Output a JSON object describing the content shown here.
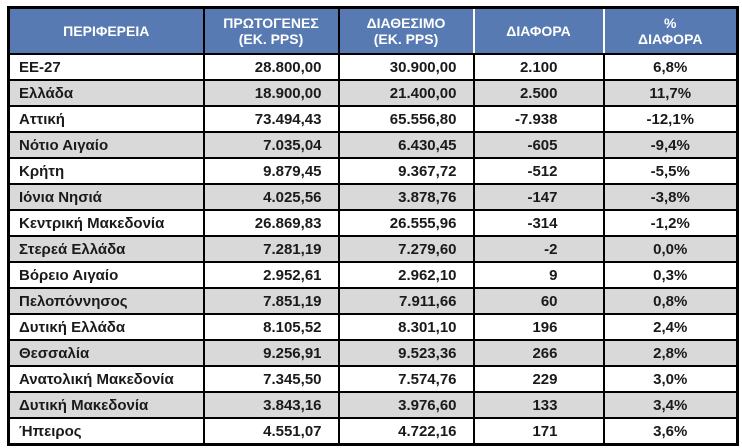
{
  "colors": {
    "header_bg": "#587AB2",
    "header_text": "#FFFFFF",
    "row_bg": "#FFFFFF",
    "row_alt_bg": "#D9D9D9",
    "border": "#000000",
    "body_text": "#1A1A1A"
  },
  "header": {
    "cols": [
      {
        "line1": "ΠΕΡΙΦΕΡΕΙΑ",
        "line2": ""
      },
      {
        "line1": "ΠΡΩΤΟΓΕΝΕΣ",
        "line2": "(ΕΚ. PPS)"
      },
      {
        "line1": "ΔΙΑΘΕΣΙΜΟ",
        "line2": "(ΕΚ. PPS)"
      },
      {
        "line1": "ΔΙΑΦΟΡΑ",
        "line2": ""
      },
      {
        "line1": "%",
        "line2": "ΔΙΑΦΟΡΑ"
      }
    ]
  },
  "chart_data": {
    "type": "table",
    "columns": [
      "ΠΕΡΙΦΕΡΕΙΑ",
      "ΠΡΩΤΟΓΕΝΕΣ (ΕΚ. PPS)",
      "ΔΙΑΘΕΣΙΜΟ (ΕΚ. PPS)",
      "ΔΙΑΦΟΡΑ",
      "% ΔΙΑΦΟΡΑ"
    ],
    "rows": [
      [
        "EE-27",
        "28.800,00",
        "30.900,00",
        "2.100",
        "6,8%"
      ],
      [
        "Ελλάδα",
        "18.900,00",
        "21.400,00",
        "2.500",
        "11,7%"
      ],
      [
        "Αττική",
        "73.494,43",
        "65.556,80",
        "-7.938",
        "-12,1%"
      ],
      [
        "Νότιο Αιγαίο",
        "7.035,04",
        "6.430,45",
        "-605",
        "-9,4%"
      ],
      [
        "Κρήτη",
        "9.879,45",
        "9.367,72",
        "-512",
        "-5,5%"
      ],
      [
        "Ιόνια Νησιά",
        "4.025,56",
        "3.878,76",
        "-147",
        "-3,8%"
      ],
      [
        "Κεντρική Μακεδονία",
        "26.869,83",
        "26.555,96",
        "-314",
        "-1,2%"
      ],
      [
        "Στερεά Ελλάδα",
        "7.281,19",
        "7.279,60",
        "-2",
        "0,0%"
      ],
      [
        "Βόρειο Αιγαίο",
        "2.952,61",
        "2.962,10",
        "9",
        "0,3%"
      ],
      [
        "Πελοπόννησος",
        "7.851,19",
        "7.911,66",
        "60",
        "0,8%"
      ],
      [
        "Δυτική Ελλάδα",
        "8.105,52",
        "8.301,10",
        "196",
        "2,4%"
      ],
      [
        "Θεσσαλία",
        "9.256,91",
        "9.523,36",
        "266",
        "2,8%"
      ],
      [
        "Ανατολική Μακεδονία",
        "7.345,50",
        "7.574,76",
        "229",
        "3,0%"
      ],
      [
        "Δυτική Μακεδονία",
        "3.843,16",
        "3.976,60",
        "133",
        "3,4%"
      ],
      [
        "Ήπειρος",
        "4.551,07",
        "4.722,16",
        "171",
        "3,6%"
      ]
    ]
  }
}
